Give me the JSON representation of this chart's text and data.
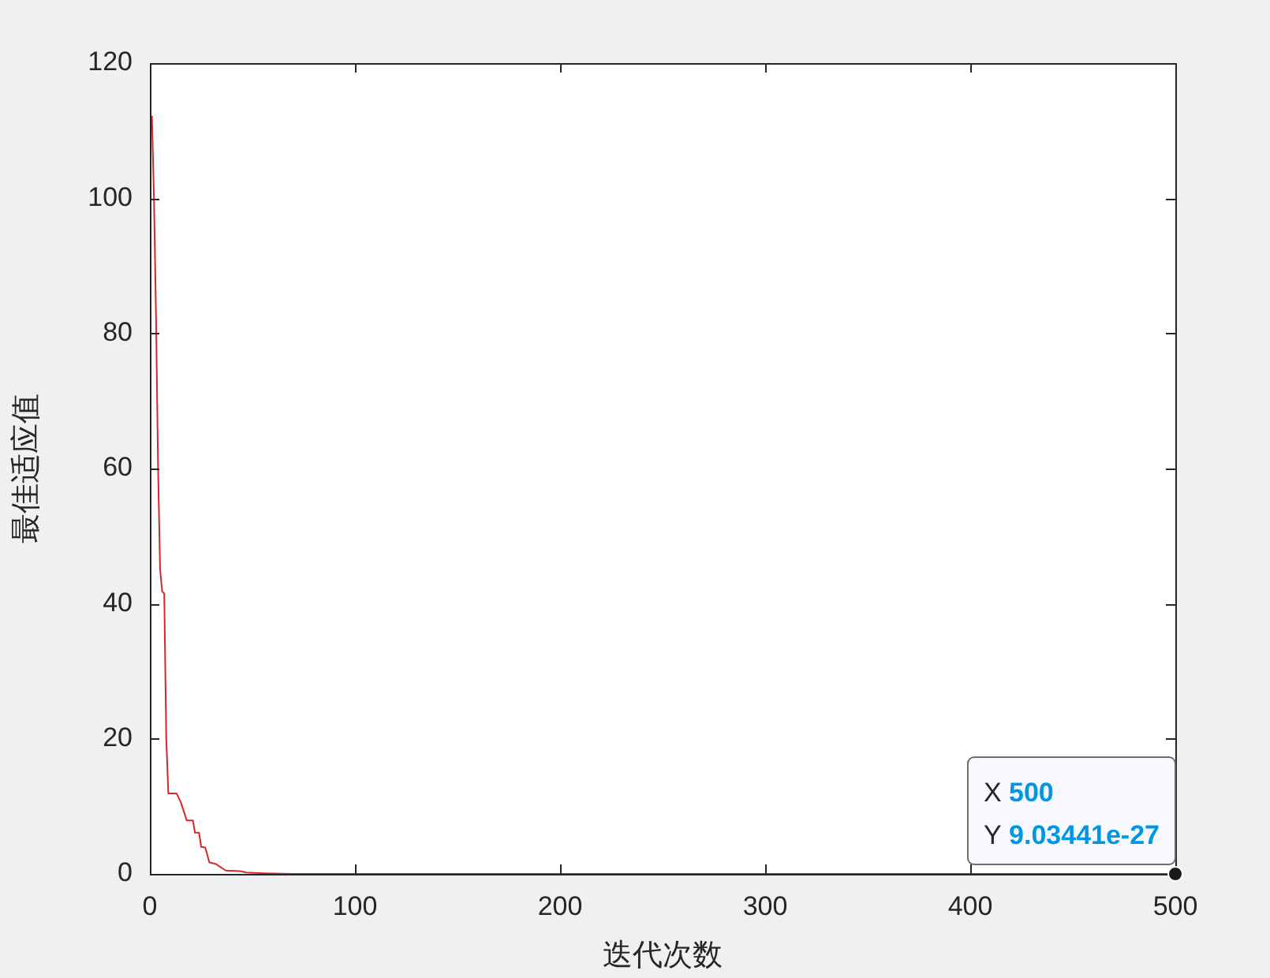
{
  "chart_data": {
    "type": "line",
    "xlabel": "迭代次数",
    "ylabel": "最佳适应值",
    "x": [
      1,
      2,
      3,
      4,
      5,
      6,
      7,
      8,
      9,
      10,
      13,
      15,
      18,
      21,
      22,
      24,
      25,
      27,
      29,
      32,
      37,
      44,
      47,
      55,
      70,
      100,
      200,
      300,
      400,
      500
    ],
    "series": [
      {
        "color": "#d62728",
        "values": [
          112.2,
          100,
          82.6,
          60,
          45,
          41.8,
          41.5,
          20,
          11.9,
          11.9,
          11.9,
          10.7,
          7.9,
          7.9,
          6.1,
          6.1,
          4.0,
          3.9,
          1.7,
          1.5,
          0.5,
          0.4,
          0.2,
          0.1,
          0,
          0,
          0,
          0,
          0,
          9.03441e-27
        ]
      }
    ],
    "xlim": [
      0,
      500
    ],
    "xticks": [
      0,
      100,
      200,
      300,
      400,
      500
    ],
    "ylim": [
      0,
      120
    ],
    "yticks": [
      0,
      20,
      40,
      60,
      80,
      100,
      120
    ],
    "grid": false,
    "legend": false,
    "marker": "none",
    "line_style": "solid",
    "annotations": [
      {
        "text": "X 500\nY 9.03441e-27",
        "x": 500,
        "y": 9.03441e-27
      }
    ]
  }
}
